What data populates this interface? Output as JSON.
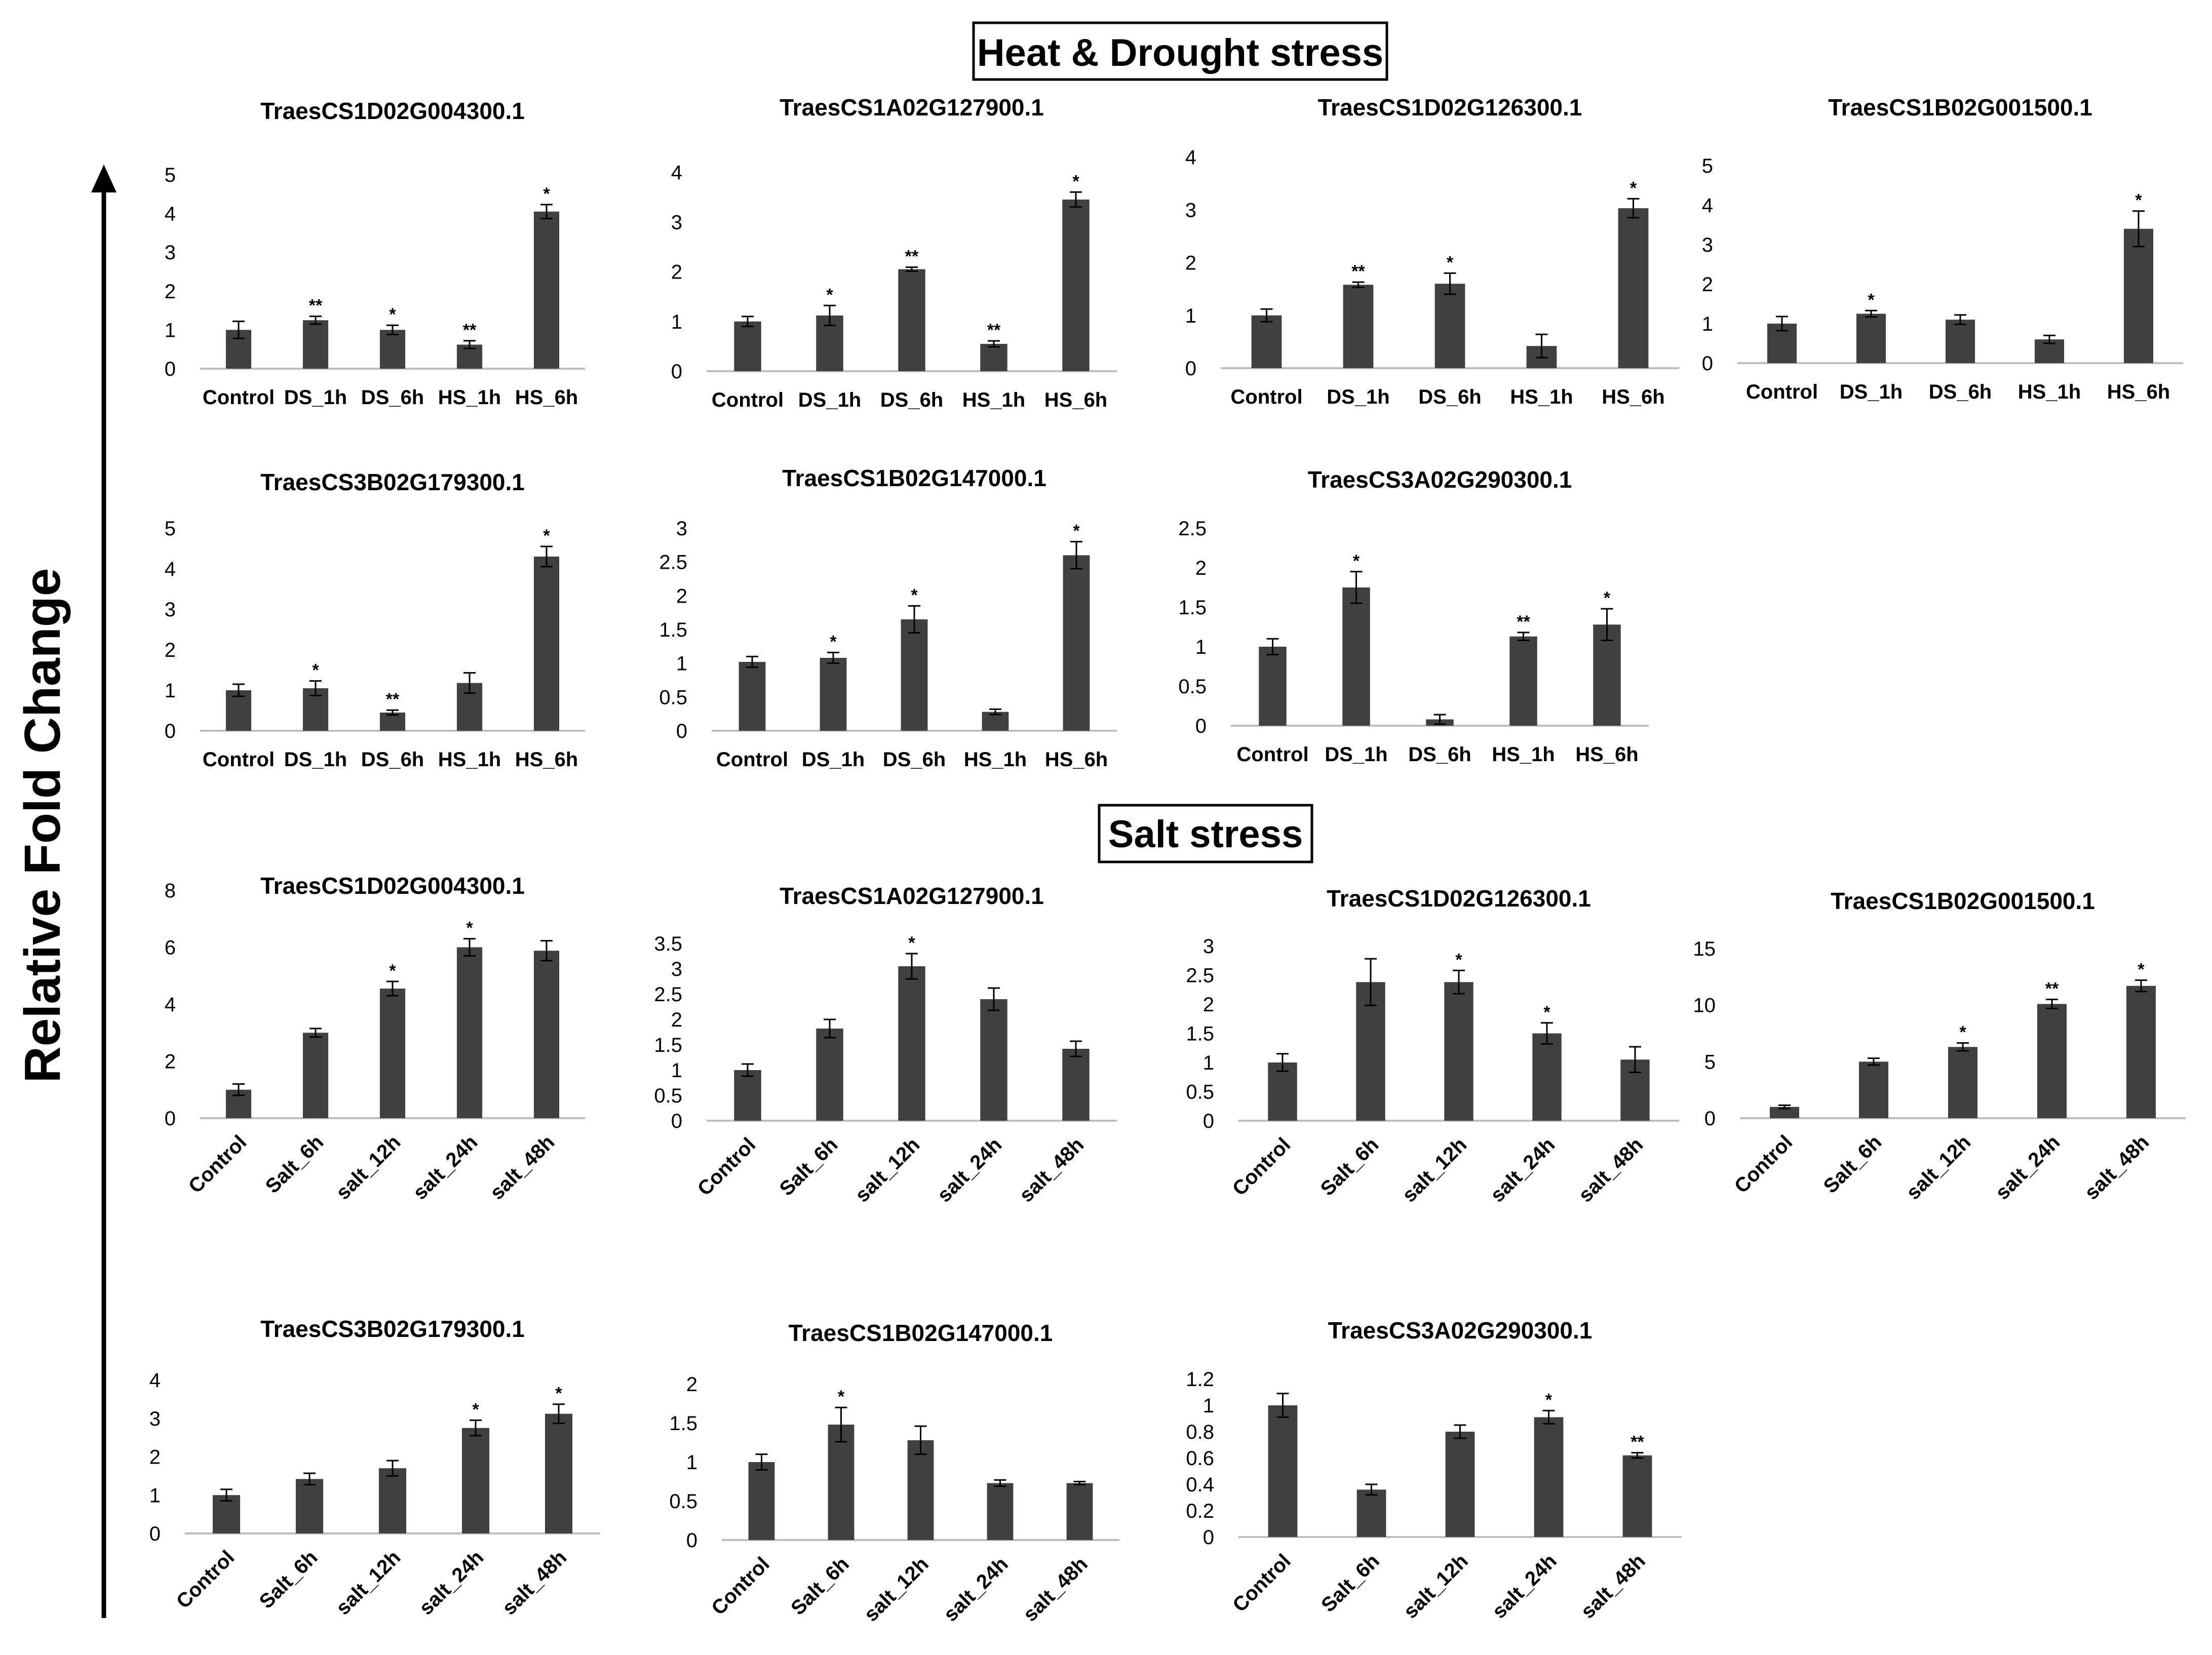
{
  "figure": {
    "section_titles": {
      "heat_drought": "Heat & Drought stress",
      "salt": "Salt stress"
    },
    "ylabel": "Relative Fold Change",
    "colors": {
      "bar": "#404040",
      "axis": "#bfbfbf",
      "text": "#000000"
    }
  },
  "chart_data": [
    {
      "type": "bar",
      "title": "TraesCS1D02G004300.1",
      "categories": [
        "Control",
        "DS_1h",
        "DS_6h",
        "HS_1h",
        "HS_6h"
      ],
      "values": [
        1.0,
        1.25,
        1.0,
        0.62,
        4.05
      ],
      "errors": [
        0.22,
        0.1,
        0.12,
        0.1,
        0.18
      ],
      "labels": [
        "",
        "**",
        "*",
        "**",
        "*"
      ],
      "ylim": [
        0,
        5
      ],
      "yticks": [
        "0",
        "1",
        "2",
        "3",
        "4",
        "5"
      ]
    },
    {
      "type": "bar",
      "title": "TraesCS1A02G127900.1",
      "categories": [
        "Control",
        "DS_1h",
        "DS_6h",
        "HS_1h",
        "HS_6h"
      ],
      "values": [
        1.0,
        1.12,
        2.05,
        0.55,
        3.45
      ],
      "errors": [
        0.1,
        0.2,
        0.04,
        0.06,
        0.15
      ],
      "labels": [
        "",
        "*",
        "**",
        "**",
        "*"
      ],
      "ylim": [
        0,
        4
      ],
      "yticks": [
        "0",
        "1",
        "2",
        "3",
        "4"
      ]
    },
    {
      "type": "bar",
      "title": "TraesCS1D02G126300.1",
      "categories": [
        "Control",
        "DS_1h",
        "DS_6h",
        "HS_1h",
        "HS_6h"
      ],
      "values": [
        1.0,
        1.58,
        1.6,
        0.42,
        3.03
      ],
      "errors": [
        0.12,
        0.05,
        0.2,
        0.22,
        0.18
      ],
      "labels": [
        "",
        "**",
        "*",
        "",
        "*"
      ],
      "ylim": [
        0,
        4
      ],
      "yticks": [
        "0",
        "1",
        "2",
        "3",
        "4"
      ]
    },
    {
      "type": "bar",
      "title": "TraesCS1B02G001500.1",
      "categories": [
        "Control",
        "DS_1h",
        "DS_6h",
        "HS_1h",
        "HS_6h"
      ],
      "values": [
        1.0,
        1.25,
        1.1,
        0.6,
        3.4
      ],
      "errors": [
        0.18,
        0.08,
        0.12,
        0.1,
        0.45
      ],
      "labels": [
        "",
        "*",
        "",
        "",
        "*"
      ],
      "ylim": [
        0,
        5
      ],
      "yticks": [
        "0",
        "1",
        "2",
        "3",
        "4",
        "5"
      ]
    },
    {
      "type": "bar",
      "title": "TraesCS3B02G179300.1",
      "categories": [
        "Control",
        "DS_1h",
        "DS_6h",
        "HS_1h",
        "HS_6h"
      ],
      "values": [
        1.0,
        1.05,
        0.45,
        1.18,
        4.3
      ],
      "errors": [
        0.15,
        0.18,
        0.06,
        0.25,
        0.25
      ],
      "labels": [
        "",
        "*",
        "**",
        "",
        "*"
      ],
      "ylim": [
        0,
        5
      ],
      "yticks": [
        "0",
        "1",
        "2",
        "3",
        "4",
        "5"
      ]
    },
    {
      "type": "bar",
      "title": "TraesCS1B02G147000.1",
      "categories": [
        "Control",
        "DS_1h",
        "DS_6h",
        "HS_1h",
        "HS_6h"
      ],
      "values": [
        1.02,
        1.08,
        1.65,
        0.28,
        2.6
      ],
      "errors": [
        0.08,
        0.08,
        0.2,
        0.04,
        0.2
      ],
      "labels": [
        "",
        "*",
        "*",
        "",
        "*"
      ],
      "ylim": [
        0,
        3
      ],
      "yticks": [
        "0",
        "0.5",
        "1",
        "1.5",
        "2",
        "2.5",
        "3"
      ]
    },
    {
      "type": "bar",
      "title": "TraesCS3A02G290300.1",
      "categories": [
        "Control",
        "DS_1h",
        "DS_6h",
        "HS_1h",
        "HS_6h"
      ],
      "values": [
        1.0,
        1.75,
        0.08,
        1.13,
        1.28
      ],
      "errors": [
        0.1,
        0.2,
        0.06,
        0.05,
        0.2
      ],
      "labels": [
        "",
        "*",
        "",
        "**",
        "*"
      ],
      "ylim": [
        0,
        2.5
      ],
      "yticks": [
        "0",
        "0.5",
        "1",
        "1.5",
        "2",
        "2.5"
      ]
    },
    {
      "type": "bar",
      "title": "TraesCS1D02G004300.1",
      "categories": [
        "Control",
        "Salt_6h",
        "salt_12h",
        "salt_24h",
        "salt_48h"
      ],
      "values": [
        1.0,
        3.0,
        4.55,
        6.0,
        5.88
      ],
      "errors": [
        0.2,
        0.15,
        0.25,
        0.3,
        0.35
      ],
      "labels": [
        "",
        "",
        "*",
        "*",
        ""
      ],
      "ylim": [
        0,
        8
      ],
      "yticks": [
        "0",
        "2",
        "4",
        "6",
        "8"
      ]
    },
    {
      "type": "bar",
      "title": "TraesCS1A02G127900.1",
      "categories": [
        "Control",
        "Salt_6h",
        "salt_12h",
        "salt_24h",
        "salt_48h"
      ],
      "values": [
        1.0,
        1.82,
        3.05,
        2.4,
        1.42
      ],
      "errors": [
        0.12,
        0.18,
        0.25,
        0.22,
        0.15
      ],
      "labels": [
        "",
        "",
        "*",
        "",
        ""
      ],
      "ylim": [
        0,
        3.5
      ],
      "yticks": [
        "0",
        "0.5",
        "1",
        "1.5",
        "2",
        "2.5",
        "3",
        "3.5"
      ]
    },
    {
      "type": "bar",
      "title": "TraesCS1D02G126300.1",
      "categories": [
        "Control",
        "Salt_6h",
        "salt_12h",
        "salt_24h",
        "salt_48h"
      ],
      "values": [
        1.0,
        2.38,
        2.38,
        1.5,
        1.05
      ],
      "errors": [
        0.15,
        0.4,
        0.2,
        0.18,
        0.22
      ],
      "labels": [
        "",
        "",
        "*",
        "*",
        ""
      ],
      "ylim": [
        0,
        3
      ],
      "yticks": [
        "0",
        "0.5",
        "1",
        "1.5",
        "2",
        "2.5",
        "3"
      ]
    },
    {
      "type": "bar",
      "title": "TraesCS1B02G001500.1",
      "categories": [
        "Control",
        "Salt_6h",
        "salt_12h",
        "salt_24h",
        "salt_48h"
      ],
      "values": [
        1.0,
        5.0,
        6.3,
        10.1,
        11.7
      ],
      "errors": [
        0.15,
        0.3,
        0.35,
        0.4,
        0.5
      ],
      "labels": [
        "",
        "",
        "*",
        "**",
        "*"
      ],
      "ylim": [
        0,
        15
      ],
      "yticks": [
        "0",
        "5",
        "10",
        "15"
      ]
    },
    {
      "type": "bar",
      "title": "TraesCS3B02G179300.1",
      "categories": [
        "Control",
        "Salt_6h",
        "salt_12h",
        "salt_24h",
        "salt_48h"
      ],
      "values": [
        1.0,
        1.42,
        1.7,
        2.75,
        3.12
      ],
      "errors": [
        0.15,
        0.15,
        0.2,
        0.2,
        0.25
      ],
      "labels": [
        "",
        "",
        "",
        "*",
        "*"
      ],
      "ylim": [
        0,
        4
      ],
      "yticks": [
        "0",
        "1",
        "2",
        "3",
        "4"
      ]
    },
    {
      "type": "bar",
      "title": "TraesCS1B02G147000.1",
      "categories": [
        "Control",
        "Salt_6h",
        "salt_12h",
        "salt_24h",
        "salt_48h"
      ],
      "values": [
        1.0,
        1.48,
        1.28,
        0.73,
        0.73
      ],
      "errors": [
        0.1,
        0.22,
        0.18,
        0.04,
        0.02
      ],
      "labels": [
        "",
        "*",
        "",
        "",
        ""
      ],
      "ylim": [
        0,
        2
      ],
      "yticks": [
        "0",
        "0.5",
        "1",
        "1.5",
        "2"
      ]
    },
    {
      "type": "bar",
      "title": "TraesCS3A02G290300.1",
      "categories": [
        "Control",
        "Salt_6h",
        "salt_12h",
        "salt_24h",
        "salt_48h"
      ],
      "values": [
        1.0,
        0.36,
        0.8,
        0.91,
        0.62
      ],
      "errors": [
        0.09,
        0.04,
        0.05,
        0.05,
        0.02
      ],
      "labels": [
        "",
        "",
        "",
        "*",
        "**"
      ],
      "ylim": [
        0,
        1.2
      ],
      "yticks": [
        "0",
        "0.2",
        "0.4",
        "0.6",
        "0.8",
        "1",
        "1.2"
      ]
    }
  ]
}
